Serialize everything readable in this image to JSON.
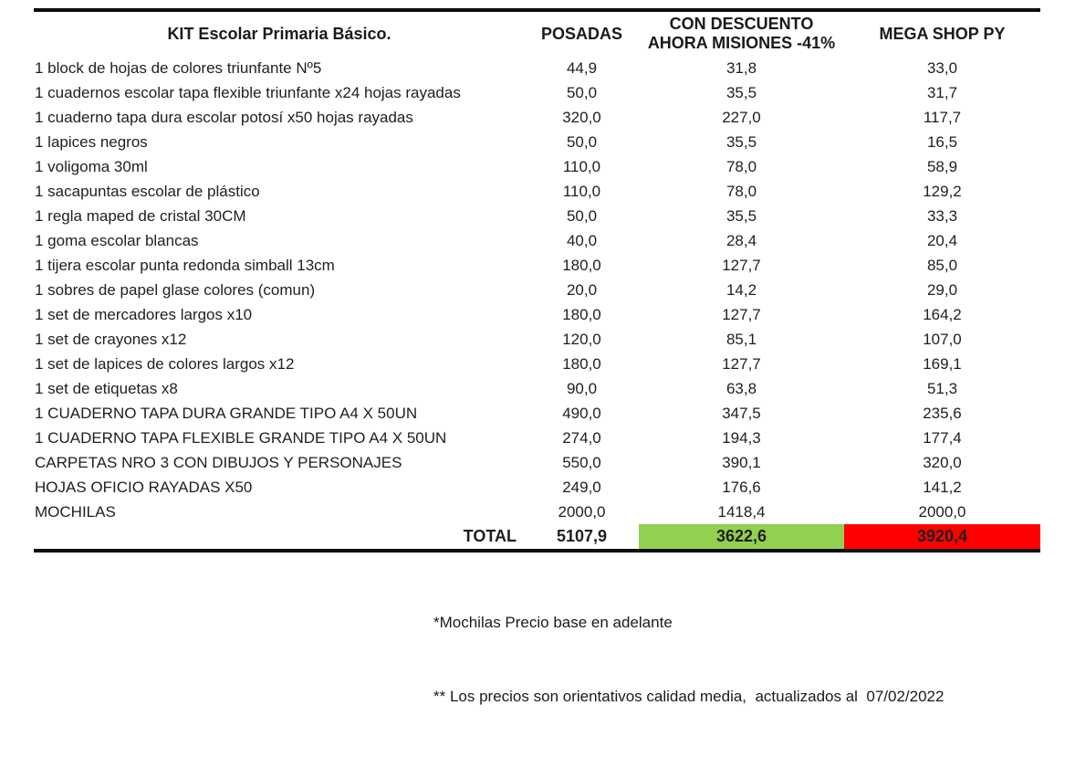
{
  "header": {
    "title": "KIT Escolar Primaria Básico.",
    "col_posadas": "POSADAS",
    "col_descuento_line1": "CON DESCUENTO",
    "col_descuento_line2": "AHORA MISIONES -41%",
    "col_megashop": "MEGA SHOP PY"
  },
  "rows": [
    {
      "item": "1 block de hojas de colores triunfante Nº5",
      "posadas": "44,9",
      "descuento": "31,8",
      "megashop": "33,0"
    },
    {
      "item": "1 cuadernos escolar tapa flexible triunfante x24 hojas rayadas",
      "posadas": "50,0",
      "descuento": "35,5",
      "megashop": "31,7"
    },
    {
      "item": "1 cuaderno tapa dura escolar potosí x50 hojas rayadas",
      "posadas": "320,0",
      "descuento": "227,0",
      "megashop": "117,7"
    },
    {
      "item": "1 lapices negros",
      "posadas": "50,0",
      "descuento": "35,5",
      "megashop": "16,5"
    },
    {
      "item": "1 voligoma 30ml",
      "posadas": "110,0",
      "descuento": "78,0",
      "megashop": "58,9"
    },
    {
      "item": "1 sacapuntas escolar de plástico",
      "posadas": "110,0",
      "descuento": "78,0",
      "megashop": "129,2"
    },
    {
      "item": "1 regla maped de cristal 30CM",
      "posadas": "50,0",
      "descuento": "35,5",
      "megashop": "33,3"
    },
    {
      "item": "1 goma escolar blancas",
      "posadas": "40,0",
      "descuento": "28,4",
      "megashop": "20,4"
    },
    {
      "item": "1 tijera escolar punta redonda simball 13cm",
      "posadas": "180,0",
      "descuento": "127,7",
      "megashop": "85,0"
    },
    {
      "item": "1 sobres de papel glase colores (comun)",
      "posadas": "20,0",
      "descuento": "14,2",
      "megashop": "29,0"
    },
    {
      "item": "1 set de mercadores largos x10",
      "posadas": "180,0",
      "descuento": "127,7",
      "megashop": "164,2"
    },
    {
      "item": "1 set de crayones x12",
      "posadas": "120,0",
      "descuento": "85,1",
      "megashop": "107,0"
    },
    {
      "item": "1 set de lapices de colores largos x12",
      "posadas": "180,0",
      "descuento": "127,7",
      "megashop": "169,1"
    },
    {
      "item": "1 set de etiquetas x8",
      "posadas": "90,0",
      "descuento": "63,8",
      "megashop": "51,3"
    },
    {
      "item": "1 CUADERNO TAPA DURA GRANDE TIPO A4 X 50UN",
      "posadas": "490,0",
      "descuento": "347,5",
      "megashop": "235,6"
    },
    {
      "item": "1 CUADERNO TAPA FLEXIBLE GRANDE TIPO A4 X 50UN",
      "posadas": "274,0",
      "descuento": "194,3",
      "megashop": "177,4"
    },
    {
      "item": "CARPETAS NRO 3 CON DIBUJOS Y PERSONAJES",
      "posadas": "550,0",
      "descuento": "390,1",
      "megashop": "320,0"
    },
    {
      "item": "HOJAS OFICIO RAYADAS X50",
      "posadas": "249,0",
      "descuento": "176,6",
      "megashop": "141,2"
    },
    {
      "item": "MOCHILAS",
      "posadas": "2000,0",
      "descuento": "1418,4",
      "megashop": "2000,0"
    }
  ],
  "total": {
    "label": "TOTAL",
    "posadas": "5107,9",
    "descuento": "3622,6",
    "megashop": "3920,4"
  },
  "footnotes": {
    "line1": "*Mochilas Precio base en adelante",
    "line2": "** Los precios son orientativos calidad media,  actualizados al  07/02/2022"
  },
  "colors": {
    "total_descuento_bg": "#92D050",
    "total_megashop_bg": "#FF0000",
    "rule_color": "#0d0d0d"
  }
}
